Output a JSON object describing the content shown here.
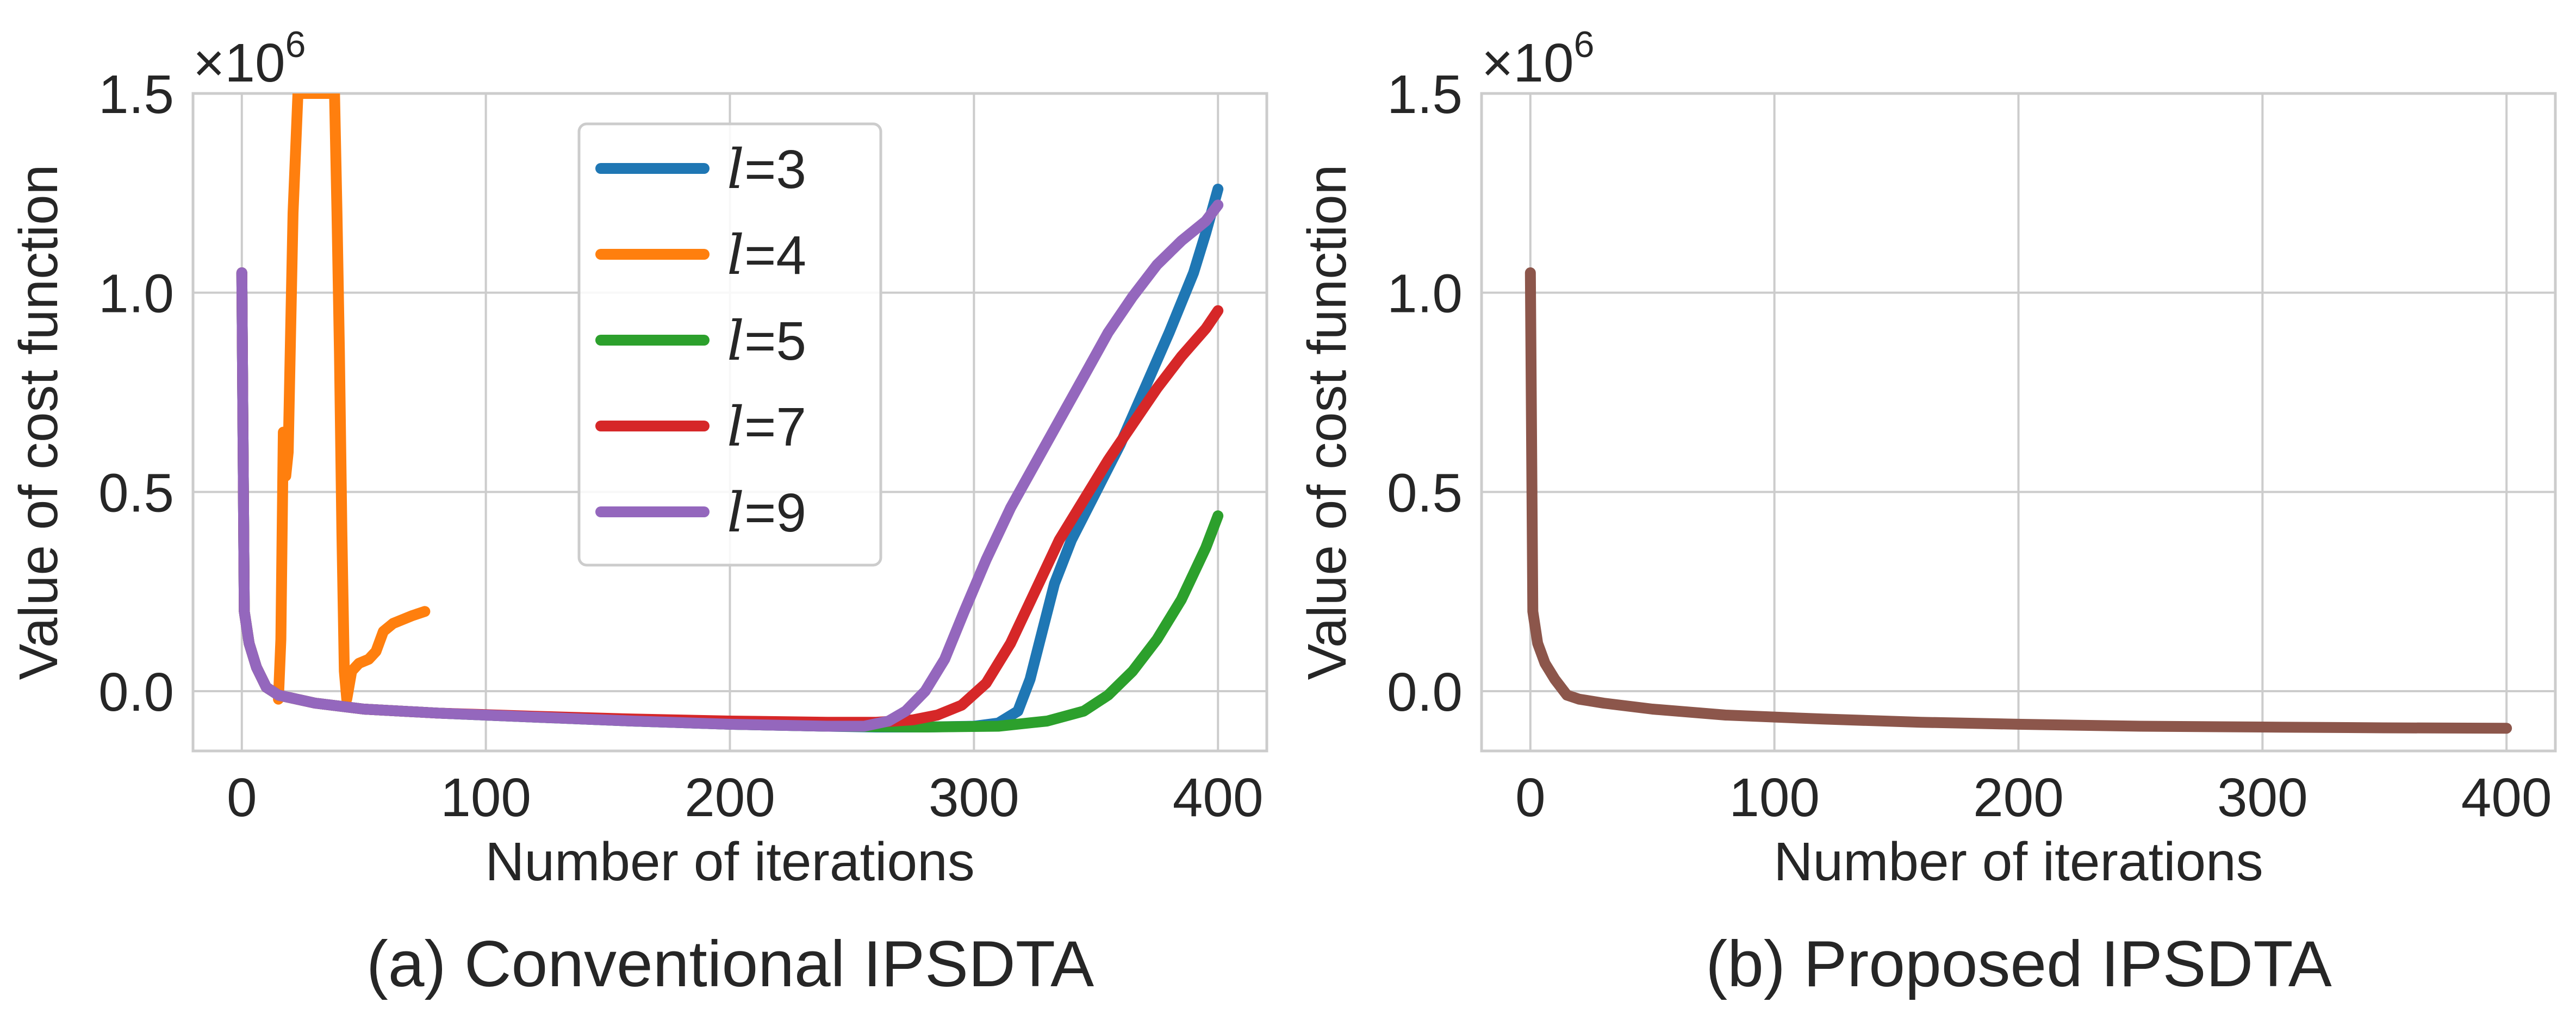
{
  "chart_data": [
    {
      "type": "line",
      "caption": "(a) Conventional IPSDTA",
      "xlabel": "Number of iterations",
      "ylabel": "Value of cost function",
      "y_exponent_base": "×10",
      "y_exponent": "6",
      "xlim": [
        -20,
        420
      ],
      "ylim": [
        -0.15,
        1.5
      ],
      "xticks": [
        0,
        100,
        200,
        300,
        400
      ],
      "xtick_labels": [
        "0",
        "100",
        "200",
        "300",
        "400"
      ],
      "yticks": [
        0.0,
        0.5,
        1.0,
        1.5
      ],
      "ytick_labels": [
        "0.0",
        "0.5",
        "1.0",
        "1.5"
      ],
      "grid": true,
      "legend_position": "upper-center",
      "legend_var": "l",
      "series": [
        {
          "name": "=3",
          "color": "#1f77b4",
          "points": [
            [
              0,
              1.05
            ],
            [
              1,
              0.2
            ],
            [
              3,
              0.12
            ],
            [
              6,
              0.06
            ],
            [
              10,
              0.01
            ],
            [
              15,
              -0.01
            ],
            [
              30,
              -0.03
            ],
            [
              50,
              -0.045
            ],
            [
              80,
              -0.055
            ],
            [
              120,
              -0.065
            ],
            [
              160,
              -0.075
            ],
            [
              200,
              -0.083
            ],
            [
              240,
              -0.088
            ],
            [
              260,
              -0.09
            ],
            [
              280,
              -0.09
            ],
            [
              300,
              -0.088
            ],
            [
              310,
              -0.08
            ],
            [
              318,
              -0.05
            ],
            [
              323,
              0.03
            ],
            [
              328,
              0.15
            ],
            [
              333,
              0.27
            ],
            [
              340,
              0.38
            ],
            [
              350,
              0.5
            ],
            [
              360,
              0.62
            ],
            [
              370,
              0.76
            ],
            [
              380,
              0.9
            ],
            [
              390,
              1.05
            ],
            [
              395,
              1.15
            ],
            [
              400,
              1.26
            ]
          ]
        },
        {
          "name": "=4",
          "color": "#ff7f0e",
          "points": [
            [
              15,
              -0.02
            ],
            [
              16,
              0.13
            ],
            [
              17,
              0.65
            ],
            [
              18,
              0.54
            ],
            [
              19,
              0.6
            ],
            [
              20,
              0.9
            ],
            [
              21,
              1.2
            ],
            [
              22,
              1.35
            ],
            [
              23,
              1.5
            ],
            [
              38,
              1.5
            ],
            [
              39,
              1.2
            ],
            [
              40,
              0.85
            ],
            [
              41,
              0.4
            ],
            [
              42,
              0.05
            ],
            [
              43,
              -0.02
            ],
            [
              45,
              0.05
            ],
            [
              48,
              0.07
            ],
            [
              52,
              0.08
            ],
            [
              55,
              0.1
            ],
            [
              58,
              0.15
            ],
            [
              62,
              0.17
            ],
            [
              70,
              0.19
            ],
            [
              75,
              0.2
            ]
          ]
        },
        {
          "name": "=5",
          "color": "#2ca02c",
          "points": [
            [
              0,
              1.05
            ],
            [
              1,
              0.2
            ],
            [
              3,
              0.12
            ],
            [
              6,
              0.06
            ],
            [
              10,
              0.01
            ],
            [
              15,
              -0.01
            ],
            [
              30,
              -0.03
            ],
            [
              50,
              -0.045
            ],
            [
              80,
              -0.055
            ],
            [
              120,
              -0.065
            ],
            [
              160,
              -0.075
            ],
            [
              200,
              -0.083
            ],
            [
              240,
              -0.088
            ],
            [
              280,
              -0.09
            ],
            [
              310,
              -0.088
            ],
            [
              330,
              -0.075
            ],
            [
              345,
              -0.05
            ],
            [
              355,
              -0.01
            ],
            [
              365,
              0.05
            ],
            [
              375,
              0.13
            ],
            [
              385,
              0.23
            ],
            [
              395,
              0.36
            ],
            [
              400,
              0.44
            ]
          ]
        },
        {
          "name": "=7",
          "color": "#d62728",
          "points": [
            [
              0,
              1.05
            ],
            [
              1,
              0.2
            ],
            [
              3,
              0.12
            ],
            [
              6,
              0.06
            ],
            [
              10,
              0.01
            ],
            [
              15,
              -0.01
            ],
            [
              30,
              -0.03
            ],
            [
              50,
              -0.045
            ],
            [
              80,
              -0.055
            ],
            [
              120,
              -0.063
            ],
            [
              160,
              -0.07
            ],
            [
              200,
              -0.075
            ],
            [
              240,
              -0.078
            ],
            [
              260,
              -0.078
            ],
            [
              275,
              -0.072
            ],
            [
              285,
              -0.06
            ],
            [
              295,
              -0.035
            ],
            [
              305,
              0.02
            ],
            [
              315,
              0.12
            ],
            [
              325,
              0.25
            ],
            [
              335,
              0.38
            ],
            [
              345,
              0.48
            ],
            [
              355,
              0.58
            ],
            [
              365,
              0.67
            ],
            [
              375,
              0.76
            ],
            [
              385,
              0.84
            ],
            [
              395,
              0.91
            ],
            [
              400,
              0.955
            ]
          ]
        },
        {
          "name": "=9",
          "color": "#9467bd",
          "points": [
            [
              0,
              1.05
            ],
            [
              1,
              0.2
            ],
            [
              3,
              0.12
            ],
            [
              6,
              0.06
            ],
            [
              10,
              0.01
            ],
            [
              15,
              -0.01
            ],
            [
              30,
              -0.03
            ],
            [
              50,
              -0.045
            ],
            [
              80,
              -0.055
            ],
            [
              120,
              -0.065
            ],
            [
              160,
              -0.075
            ],
            [
              200,
              -0.083
            ],
            [
              240,
              -0.088
            ],
            [
              255,
              -0.088
            ],
            [
              265,
              -0.075
            ],
            [
              272,
              -0.05
            ],
            [
              280,
              0.0
            ],
            [
              288,
              0.08
            ],
            [
              296,
              0.2
            ],
            [
              305,
              0.33
            ],
            [
              315,
              0.46
            ],
            [
              325,
              0.57
            ],
            [
              335,
              0.68
            ],
            [
              345,
              0.79
            ],
            [
              355,
              0.9
            ],
            [
              365,
              0.99
            ],
            [
              375,
              1.07
            ],
            [
              385,
              1.13
            ],
            [
              395,
              1.18
            ],
            [
              400,
              1.22
            ]
          ]
        }
      ]
    },
    {
      "type": "line",
      "caption": "(b) Proposed IPSDTA",
      "xlabel": "Number of iterations",
      "ylabel": "Value of cost function",
      "y_exponent_base": "×10",
      "y_exponent": "6",
      "xlim": [
        -20,
        420
      ],
      "ylim": [
        -0.15,
        1.5
      ],
      "xticks": [
        0,
        100,
        200,
        300,
        400
      ],
      "xtick_labels": [
        "0",
        "100",
        "200",
        "300",
        "400"
      ],
      "yticks": [
        0.0,
        0.5,
        1.0,
        1.5
      ],
      "ytick_labels": [
        "0.0",
        "0.5",
        "1.0",
        "1.5"
      ],
      "grid": true,
      "series": [
        {
          "color": "#8c564b",
          "points": [
            [
              0,
              1.05
            ],
            [
              1,
              0.2
            ],
            [
              3,
              0.12
            ],
            [
              6,
              0.07
            ],
            [
              10,
              0.03
            ],
            [
              15,
              -0.01
            ],
            [
              20,
              -0.02
            ],
            [
              30,
              -0.03
            ],
            [
              50,
              -0.045
            ],
            [
              80,
              -0.06
            ],
            [
              120,
              -0.07
            ],
            [
              160,
              -0.078
            ],
            [
              200,
              -0.083
            ],
            [
              250,
              -0.088
            ],
            [
              300,
              -0.09
            ],
            [
              350,
              -0.092
            ],
            [
              400,
              -0.093
            ]
          ]
        }
      ]
    }
  ]
}
